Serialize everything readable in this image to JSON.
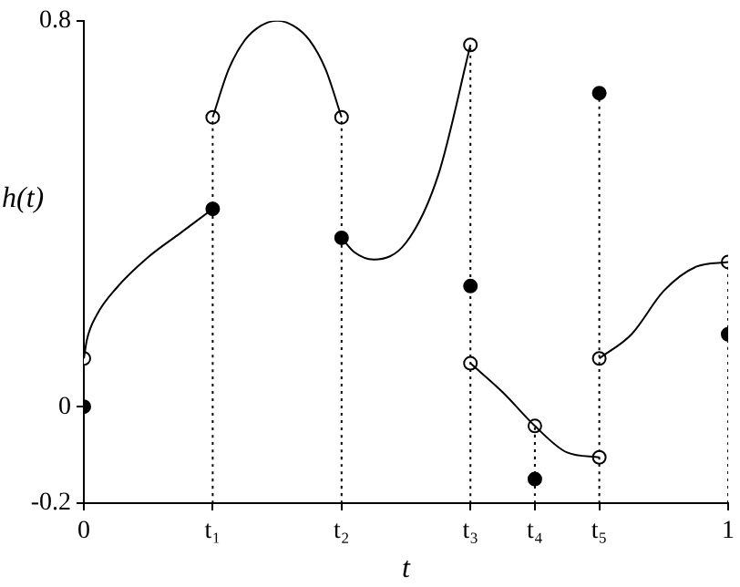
{
  "chart_data": {
    "type": "line",
    "xlabel": "t",
    "ylabel": "h(t)",
    "xlim": [
      0,
      1
    ],
    "ylim": [
      -0.2,
      0.8
    ],
    "xticks": [
      0,
      {
        "value": 0.2,
        "label": "t₁"
      },
      {
        "value": 0.4,
        "label": "t₂"
      },
      {
        "value": 0.6,
        "label": "t₃"
      },
      {
        "value": 0.7,
        "label": "t₄"
      },
      {
        "value": 0.8,
        "label": "t₅"
      },
      1
    ],
    "yticks": [
      -0.2,
      0,
      0.8
    ],
    "grid": false,
    "legend": false,
    "series": [
      {
        "marker": "none",
        "color": "#000000",
        "x": [
          0,
          0.005,
          0.02,
          0.05,
          0.1,
          0.15,
          0.2
        ],
        "values": [
          0.1,
          0.14,
          0.19,
          0.245,
          0.31,
          0.36,
          0.41
        ]
      },
      {
        "marker": "none",
        "color": "#000000",
        "x": [
          0.2,
          0.225,
          0.25,
          0.275,
          0.3,
          0.325,
          0.35,
          0.375,
          0.4
        ],
        "values": [
          0.6,
          0.7,
          0.76,
          0.79,
          0.8,
          0.79,
          0.76,
          0.7,
          0.6
        ]
      },
      {
        "marker": "none",
        "color": "#000000",
        "x": [
          0.4,
          0.42,
          0.45,
          0.5,
          0.55,
          0.6
        ],
        "values": [
          0.35,
          0.32,
          0.305,
          0.34,
          0.48,
          0.75
        ]
      },
      {
        "marker": "none",
        "color": "#000000",
        "x": [
          0.6,
          0.65,
          0.7,
          0.75,
          0.8
        ],
        "values": [
          0.09,
          0.03,
          -0.04,
          -0.095,
          -0.105
        ]
      },
      {
        "marker": "none",
        "color": "#000000",
        "x": [
          0.8,
          0.85,
          0.9,
          0.95,
          1
        ],
        "values": [
          0.1,
          0.15,
          0.24,
          0.29,
          0.3
        ]
      },
      {
        "type": "line",
        "marker": "none",
        "line_style": "dotted",
        "color": "#000000",
        "x": [
          0.2,
          0.2
        ],
        "values": [
          -0.2,
          0.6
        ]
      },
      {
        "type": "line",
        "marker": "none",
        "line_style": "dotted",
        "color": "#000000",
        "x": [
          0.4,
          0.4
        ],
        "values": [
          -0.2,
          0.6
        ]
      },
      {
        "type": "line",
        "marker": "none",
        "line_style": "dotted",
        "color": "#000000",
        "x": [
          0.6,
          0.6
        ],
        "values": [
          -0.2,
          0.75
        ]
      },
      {
        "type": "line",
        "marker": "none",
        "line_style": "dotted",
        "color": "#000000",
        "x": [
          0.7,
          0.7
        ],
        "values": [
          -0.2,
          -0.04
        ]
      },
      {
        "type": "line",
        "marker": "none",
        "line_style": "dotted",
        "color": "#000000",
        "x": [
          0.8,
          0.8
        ],
        "values": [
          -0.2,
          0.65
        ]
      },
      {
        "type": "line",
        "marker": "none",
        "line_style": "dotted",
        "color": "#000000",
        "x": [
          1,
          1
        ],
        "values": [
          -0.2,
          0.3
        ]
      },
      {
        "type": "scatter",
        "marker": "circle",
        "color": "#ffffff",
        "x": [
          0,
          0.2,
          0.4,
          0.6,
          0.6,
          0.7,
          0.8,
          0.8,
          1
        ],
        "values": [
          0.1,
          0.6,
          0.6,
          0.75,
          0.09,
          -0.04,
          -0.105,
          0.1,
          0.3
        ]
      },
      {
        "type": "scatter",
        "marker": "circle",
        "color": "#000000",
        "x": [
          0,
          0.2,
          0.4,
          0.6,
          0.7,
          0.8,
          1
        ],
        "values": [
          0,
          0.41,
          0.35,
          0.25,
          -0.15,
          0.65,
          0.15
        ]
      }
    ]
  }
}
